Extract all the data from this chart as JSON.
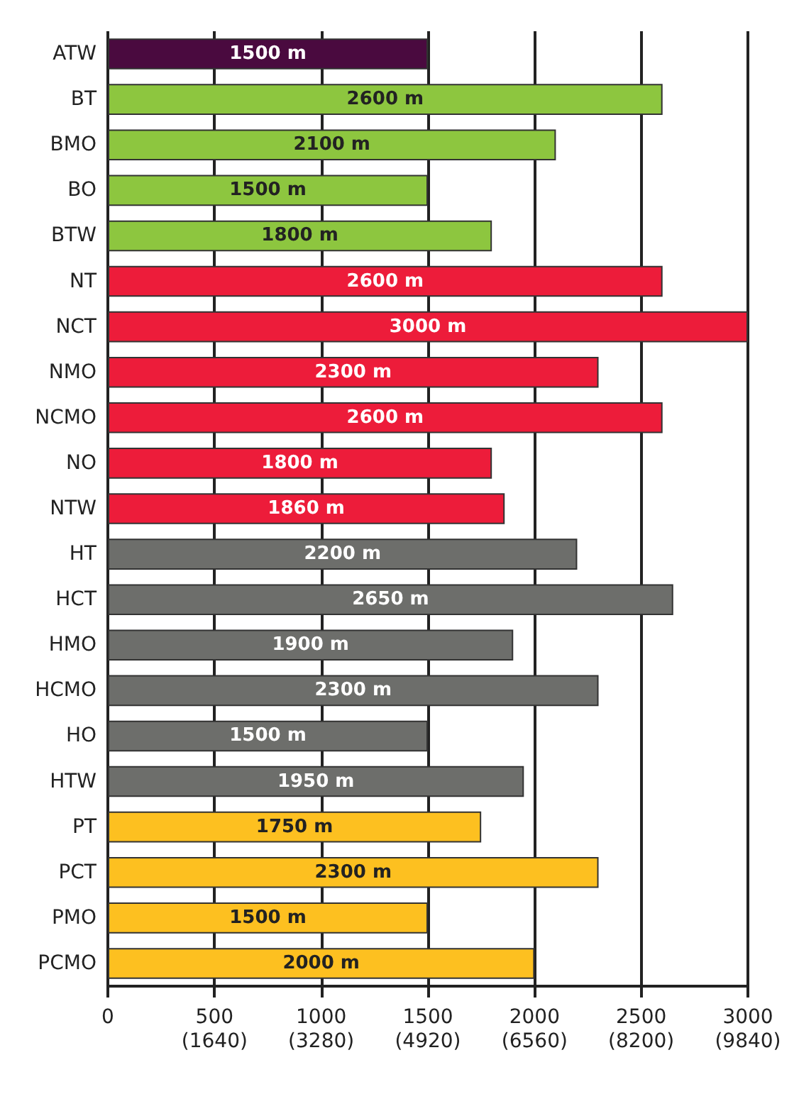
{
  "chart_data": {
    "type": "bar",
    "orientation": "horizontal",
    "categories": [
      "ATW",
      "BT",
      "BMO",
      "BO",
      "BTW",
      "NT",
      "NCT",
      "NMO",
      "NCMO",
      "NO",
      "NTW",
      "HT",
      "HCT",
      "HMO",
      "HCMO",
      "HO",
      "HTW",
      "PT",
      "PCT",
      "PMO",
      "PCMO"
    ],
    "values": [
      1500,
      2600,
      2100,
      1500,
      1800,
      2600,
      3000,
      2300,
      2600,
      1800,
      1860,
      2200,
      2650,
      1900,
      2300,
      1500,
      1950,
      1750,
      2300,
      1500,
      2000
    ],
    "colors": [
      "#4a0a3f",
      "#8dc63f",
      "#8dc63f",
      "#8dc63f",
      "#8dc63f",
      "#ed1c3a",
      "#ed1c3a",
      "#ed1c3a",
      "#ed1c3a",
      "#ed1c3a",
      "#ed1c3a",
      "#6d6e6b",
      "#6d6e6b",
      "#6d6e6b",
      "#6d6e6b",
      "#6d6e6b",
      "#6d6e6b",
      "#fdc020",
      "#fdc020",
      "#fdc020",
      "#fdc020"
    ],
    "value_labels": [
      "1500 m",
      "2600 m",
      "2100 m",
      "1500 m",
      "1800 m",
      "2600 m",
      "3000 m",
      "2300 m",
      "2600 m",
      "1800 m",
      "1860 m",
      "2200 m",
      "2650 m",
      "1900 m",
      "2300 m",
      "1500 m",
      "1950 m",
      "1750 m",
      "2300 m",
      "1500 m",
      "2000 m"
    ],
    "xlim": [
      0,
      3000
    ],
    "xticks": [
      0,
      500,
      1000,
      1500,
      2000,
      2500,
      3000
    ],
    "x2lim": [
      0,
      9840
    ],
    "x2ticks": [
      {
        "value": 1640,
        "label": "(1640)"
      },
      {
        "value": 3280,
        "label": "(3280)"
      },
      {
        "value": 4920,
        "label": "(4920)"
      },
      {
        "value": 6560,
        "label": "(6560)"
      },
      {
        "value": 8200,
        "label": "(8200)"
      },
      {
        "value": 9840,
        "label": "(9840)"
      }
    ],
    "grid": "x"
  }
}
